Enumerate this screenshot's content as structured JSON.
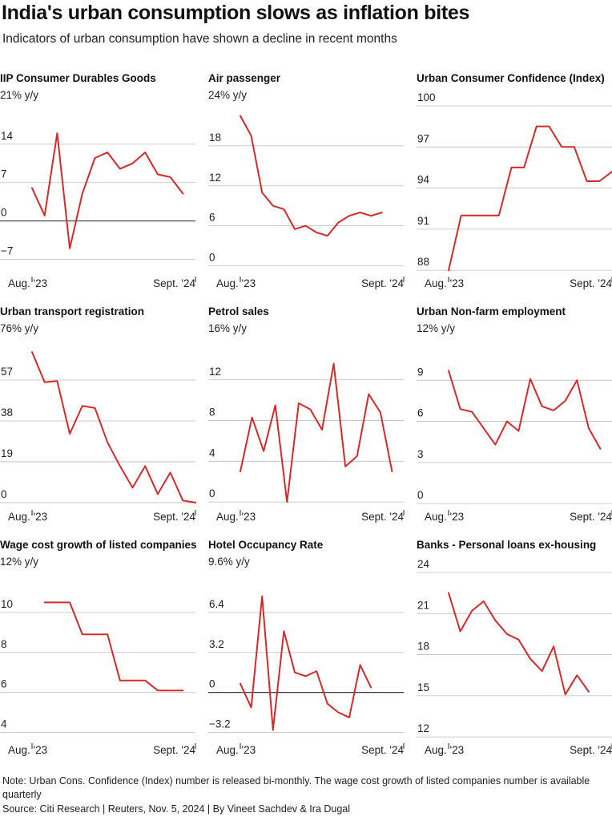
{
  "header": {
    "title": "India's urban consumption slows as inflation bites",
    "subtitle": "Indicators of urban consumption have shown a decline in recent months"
  },
  "colors": {
    "line": "#d62a2a",
    "grid": "#bdbdbd",
    "zero": "#222222"
  },
  "chart_data": [
    {
      "type": "line",
      "title": "IIP Consumer Durables Goods",
      "unit_label": "21% y/y",
      "yticks": [
        -7,
        0,
        7,
        14
      ],
      "ytick_labels": [
        "−7",
        "0",
        "7",
        "14"
      ],
      "ylim": [
        -10,
        21
      ],
      "zero_line": true,
      "x_labels": [
        "Aug. '23",
        "Sept. '24"
      ],
      "x_count": 14,
      "x_offset": 0,
      "values": [
        6,
        1,
        16,
        -5,
        5,
        11.5,
        12.5,
        9.5,
        10.5,
        12.5,
        8.5,
        8,
        5
      ]
    },
    {
      "type": "line",
      "title": "Air passenger",
      "unit_label": "24% y/y",
      "yticks": [
        0,
        6,
        12,
        18
      ],
      "ytick_labels": [
        "0",
        "6",
        "12",
        "18"
      ],
      "ylim": [
        -1.5,
        24
      ],
      "zero_line": false,
      "x_labels": [
        "Aug. '23",
        "Sept. '24"
      ],
      "x_count": 16,
      "x_offset": 0,
      "values": [
        22.5,
        19.5,
        11,
        9,
        8.5,
        5.5,
        6,
        5,
        4.5,
        6.5,
        7.5,
        8,
        7.5,
        8
      ]
    },
    {
      "type": "line",
      "title": "Urban Consumer Confidence (Index)",
      "unit_label": "",
      "yticks": [
        88,
        91,
        94,
        97,
        100
      ],
      "ytick_labels": [
        "88",
        "91",
        "94",
        "97",
        "100"
      ],
      "ylim": [
        87.6,
        100
      ],
      "zero_line": false,
      "x_labels": [
        "Aug. '23",
        "Sept. '24"
      ],
      "x_count": 14,
      "x_offset": 0,
      "values": [
        88,
        92,
        92,
        92,
        92,
        95.5,
        95.5,
        98.5,
        98.5,
        97,
        97,
        94.5,
        94.5,
        95.2
      ]
    },
    {
      "type": "line",
      "title": "Urban transport registration",
      "unit_label": "76% y/y",
      "yticks": [
        0,
        19,
        38,
        57
      ],
      "ytick_labels": [
        "0",
        "19",
        "38",
        "57"
      ],
      "ylim": [
        -3,
        76
      ],
      "zero_line": false,
      "x_labels": [
        "Aug. '23",
        "Sept. '24"
      ],
      "x_count": 14,
      "x_offset": 0,
      "values": [
        70,
        56,
        56.5,
        32,
        45,
        44,
        28,
        17,
        7,
        17,
        4,
        14,
        1,
        0
      ]
    },
    {
      "type": "line",
      "title": "Petrol sales",
      "unit_label": "16% y/y",
      "yticks": [
        0,
        4,
        8,
        12
      ],
      "ytick_labels": [
        "0",
        "4",
        "8",
        "12"
      ],
      "ylim": [
        -0.7,
        16
      ],
      "zero_line": false,
      "x_labels": [
        "Aug. '23",
        "Sept. '24"
      ],
      "x_count": 15,
      "x_offset": 0,
      "values": [
        3,
        8.3,
        5,
        9.5,
        0,
        9.7,
        9.1,
        7.1,
        13.6,
        3.5,
        4.5,
        10.6,
        8.8,
        3
      ]
    },
    {
      "type": "line",
      "title": "Urban Non-farm employment",
      "unit_label": "12% y/y",
      "yticks": [
        0,
        3,
        6,
        9
      ],
      "ytick_labels": [
        "0",
        "3",
        "6",
        "9"
      ],
      "ylim": [
        -0.4,
        12
      ],
      "zero_line": false,
      "x_labels": [
        "Aug. '23",
        "Sept. '24"
      ],
      "x_count": 15,
      "x_offset": 0,
      "values": [
        9.7,
        6.9,
        6.7,
        5.5,
        4.3,
        6,
        5.3,
        9.1,
        7.1,
        6.8,
        7.5,
        9,
        5.5,
        4
      ]
    },
    {
      "type": "line",
      "title": "Wage cost growth of listed companies",
      "unit_label": "12% y/y",
      "yticks": [
        4,
        6,
        8,
        10
      ],
      "ytick_labels": [
        "4",
        "6",
        "8",
        "10"
      ],
      "ylim": [
        3.5,
        12
      ],
      "zero_line": false,
      "x_labels": [
        "Aug. '23",
        "Sept. '24"
      ],
      "x_count": 14,
      "x_offset": 1,
      "values": [
        10.5,
        10.5,
        10.5,
        8.9,
        8.9,
        8.9,
        6.6,
        6.6,
        6.6,
        6.1,
        6.1,
        6.1
      ]
    },
    {
      "type": "line",
      "title": "Hotel Occupancy Rate",
      "unit_label": "9.6% y/y",
      "yticks": [
        -3.2,
        0,
        3.2,
        6.4
      ],
      "ytick_labels": [
        "−3.2",
        "0",
        "3.2",
        "6.4"
      ],
      "ylim": [
        -4,
        9.6
      ],
      "zero_line": true,
      "x_labels": [
        "Aug. '23",
        "Sept. '24"
      ],
      "x_count": 16,
      "x_offset": 0,
      "values": [
        0.7,
        -1.2,
        7.7,
        -3,
        4.9,
        1.6,
        1.3,
        1.7,
        -0.9,
        -1.6,
        -2,
        2.2,
        0.4
      ]
    },
    {
      "type": "line",
      "title": "Banks - Personal loans ex-housing",
      "unit_label": "",
      "yticks": [
        12,
        15,
        18,
        21,
        24
      ],
      "ytick_labels": [
        "12",
        "15",
        "18",
        "21",
        "24"
      ],
      "ylim": [
        11.6,
        24
      ],
      "zero_line": false,
      "x_labels": [
        "Aug. '23",
        "Sept. '24"
      ],
      "x_count": 15,
      "x_offset": 0,
      "values": [
        22.5,
        19.7,
        21.2,
        21.9,
        20.5,
        19.5,
        19.1,
        17.7,
        16.8,
        18.6,
        15.1,
        16.5,
        15.3
      ]
    }
  ],
  "footer": {
    "note": "Note: Urban Cons. Confidence (Index) number is released bi-monthly. The wage cost growth of listed companies number is available quarterly",
    "source": "Source: Citi Research | Reuters, Nov. 5, 2024 | By Vineet Sachdev & Ira Dugal"
  }
}
